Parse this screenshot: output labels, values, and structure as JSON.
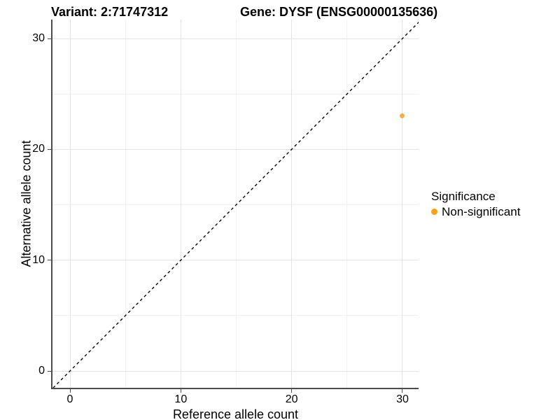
{
  "titles": {
    "variant": "Variant: 2:71747312",
    "gene": "Gene: DYSF (ENSG00000135636)"
  },
  "chart_data": {
    "type": "scatter",
    "xlabel": "Reference allele count",
    "ylabel": "Alternative allele count",
    "x_ticks": [
      0,
      10,
      20,
      30
    ],
    "y_ticks": [
      0,
      10,
      20,
      30
    ],
    "x_minor_gridlines": [
      5,
      15,
      25
    ],
    "y_minor_gridlines": [
      5,
      15,
      25
    ],
    "xlim": [
      -1.6,
      31.5
    ],
    "ylim": [
      -1.6,
      31.7
    ],
    "grid": "major-and-minor",
    "identity_line": {
      "slope": 1,
      "intercept": 0,
      "style": "dashed",
      "color": "#000000"
    },
    "points": [
      {
        "x": 30,
        "y": 23,
        "series": "Non-significant",
        "color": "#F9A123",
        "radius": 3.5,
        "opacity": 0.85
      }
    ],
    "legend": {
      "title": "Significance",
      "position": "right",
      "items": [
        {
          "label": "Non-significant",
          "color": "#FBA018",
          "marker": "circle"
        }
      ]
    }
  },
  "colors": {
    "background": "#FFFFFF",
    "axis_line": "#4D4D4D",
    "grid_major": "#E4E4E4",
    "grid_minor": "#F1F1F1",
    "text": "#000000",
    "accent_orange": "#F9A123"
  }
}
